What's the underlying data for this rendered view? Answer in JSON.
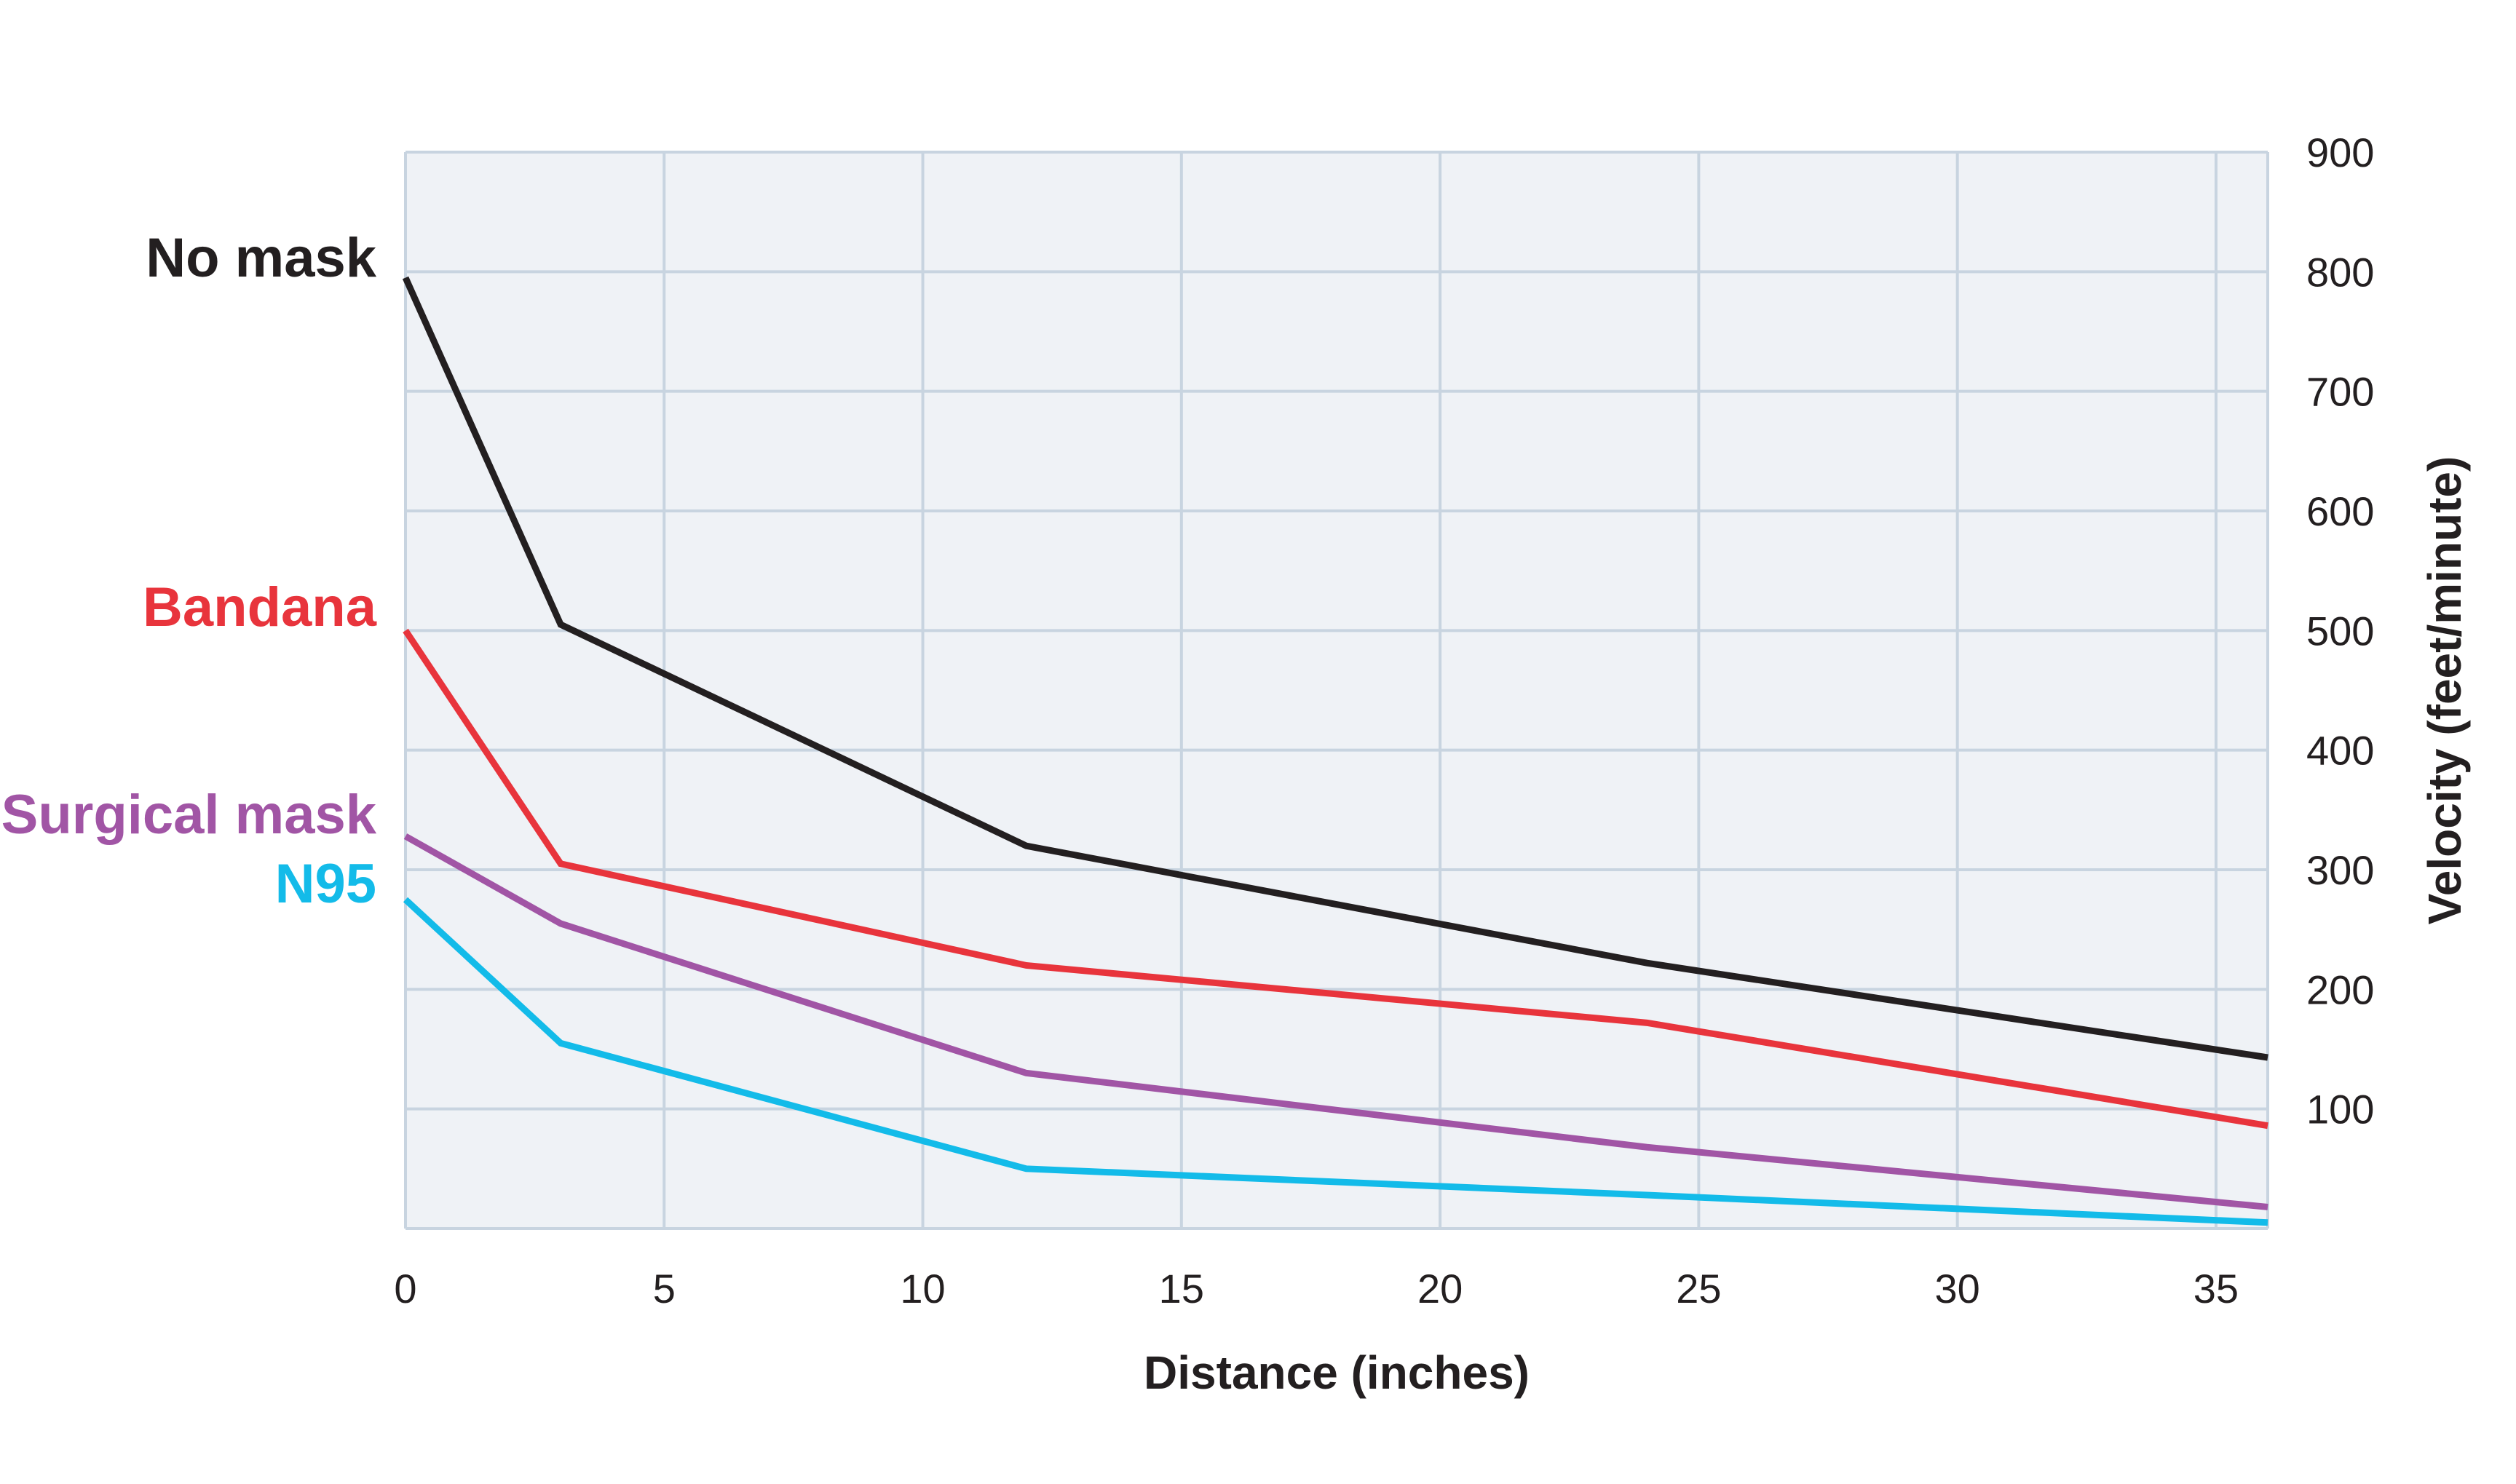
{
  "chart_data": {
    "type": "line",
    "title": "",
    "xlabel": "Distance (inches)",
    "ylabel": "Velocity (feet/minute)",
    "xlim": [
      0,
      36
    ],
    "ylim": [
      0,
      900
    ],
    "x_ticks": [
      0,
      5,
      10,
      15,
      20,
      25,
      30,
      35
    ],
    "y_ticks": [
      100,
      200,
      300,
      400,
      500,
      600,
      700,
      800,
      900
    ],
    "y_axis_side": "right",
    "grid": true,
    "legend": "direct labels at left of lines",
    "series": [
      {
        "name": "No mask",
        "color": "#231f20",
        "x": [
          0,
          3,
          12,
          24,
          36
        ],
        "y": [
          795,
          505,
          320,
          222,
          143
        ]
      },
      {
        "name": "Bandana",
        "color": "#e8343c",
        "x": [
          0,
          3,
          12,
          24,
          36
        ],
        "y": [
          500,
          305,
          220,
          172,
          86
        ]
      },
      {
        "name": "Surgical mask",
        "color": "#a155a5",
        "x": [
          0,
          3,
          12,
          24,
          36
        ],
        "y": [
          328,
          255,
          130,
          68,
          18
        ]
      },
      {
        "name": "N95",
        "color": "#13bbe9",
        "x": [
          0,
          3,
          12,
          24,
          36
        ],
        "y": [
          275,
          155,
          50,
          28,
          5
        ]
      }
    ]
  }
}
